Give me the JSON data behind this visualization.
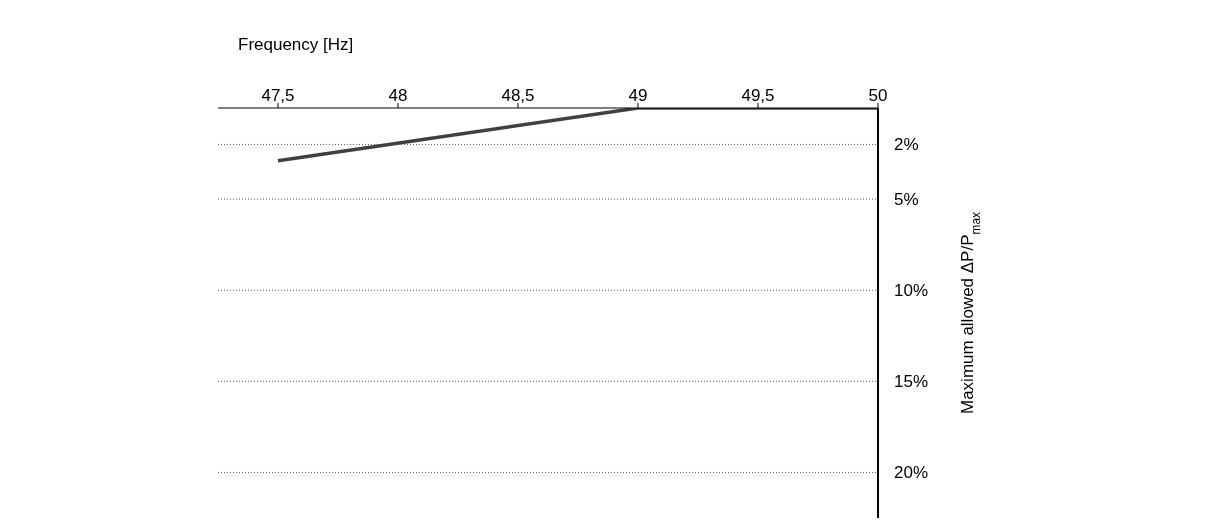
{
  "chart_data": {
    "type": "line",
    "xlabel": "Frequency [Hz]",
    "ylabel": "Maximum allowed ΔP/P$_{max}$",
    "x": [
      47.5,
      49,
      50
    ],
    "series": [
      {
        "color": "#404040",
        "values": [
          2.9,
          0,
          0
        ]
      }
    ],
    "xlim": [
      47.25,
      50
    ],
    "xticks": [
      {
        "value": 47.5,
        "label": "47,5"
      },
      48,
      {
        "value": 48.5,
        "label": "48,5"
      },
      49,
      {
        "value": 49.5,
        "label": "49,5"
      },
      50
    ],
    "ylim": [
      22.5,
      0
    ],
    "yticks": [
      {
        "value": 2,
        "label": "2%"
      },
      {
        "value": 5,
        "label": "5%"
      },
      {
        "value": 10,
        "label": "10%"
      },
      {
        "value": 15,
        "label": "15%"
      },
      {
        "value": 20,
        "label": "20%"
      }
    ],
    "grid": "y",
    "marker": "none",
    "line_style": "solid",
    "legend": false
  }
}
